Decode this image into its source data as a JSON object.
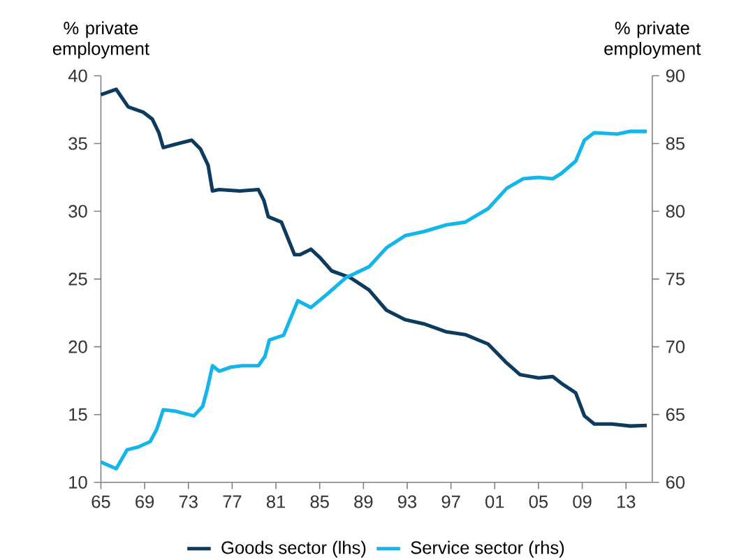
{
  "chart_data": {
    "type": "line",
    "ylabel": "% private employment",
    "y2label": "% private employment",
    "xlim": [
      1965,
      2015.4
    ],
    "ylim": [
      10,
      40
    ],
    "y2lim": [
      60,
      90
    ],
    "xticks": [
      {
        "value": 1965,
        "label": "65"
      },
      {
        "value": 1969,
        "label": "69"
      },
      {
        "value": 1973,
        "label": "73"
      },
      {
        "value": 1977,
        "label": "77"
      },
      {
        "value": 1981,
        "label": "81"
      },
      {
        "value": 1985,
        "label": "85"
      },
      {
        "value": 1989,
        "label": "89"
      },
      {
        "value": 1993,
        "label": "93"
      },
      {
        "value": 1997,
        "label": "97"
      },
      {
        "value": 2001,
        "label": "01"
      },
      {
        "value": 2005,
        "label": "05"
      },
      {
        "value": 2009,
        "label": "09"
      },
      {
        "value": 2013,
        "label": "13"
      }
    ],
    "yticks": [
      10,
      15,
      20,
      25,
      30,
      35,
      40
    ],
    "y2ticks": [
      60,
      65,
      70,
      75,
      80,
      85,
      90
    ],
    "grid": false,
    "legend": "bottom",
    "marker": "none",
    "line_style": "solid",
    "series": [
      {
        "name": "Goods sector (lhs)",
        "color": "#0d3b5e",
        "x": [
          1965.0,
          1966.4,
          1967.5,
          1968.9,
          1969.7,
          1970.3,
          1970.7,
          1971.6,
          1973.3,
          1974.1,
          1974.8,
          1975.2,
          1975.8,
          1977.7,
          1979.4,
          1979.9,
          1980.3,
          1981.5,
          1982.7,
          1983.2,
          1984.2,
          1985.0,
          1986.1,
          1987.8,
          1989.5,
          1991.1,
          1992.8,
          1994.5,
          1996.6,
          1998.3,
          2000.4,
          2002.1,
          2003.3,
          2005.0,
          2006.3,
          2007.1,
          2008.4,
          2009.2,
          2010.1,
          2011.7,
          2013.4,
          2014.9
        ],
        "values": [
          38.6,
          39.0,
          37.7,
          37.3,
          36.8,
          35.8,
          34.7,
          34.9,
          35.25,
          34.6,
          33.4,
          31.5,
          31.6,
          31.5,
          31.6,
          30.8,
          29.6,
          29.2,
          26.8,
          26.8,
          27.2,
          26.6,
          25.6,
          25.1,
          24.2,
          22.7,
          22.0,
          21.7,
          21.1,
          20.9,
          20.2,
          18.8,
          17.95,
          17.7,
          17.8,
          17.3,
          16.6,
          14.9,
          14.3,
          14.3,
          14.15,
          14.2
        ]
      },
      {
        "name": "Service sector (rhs)",
        "color": "#13b5ea",
        "axis": "y2",
        "x": [
          1965.0,
          1966.4,
          1967.4,
          1968.4,
          1969.5,
          1970.1,
          1970.7,
          1971.8,
          1973.5,
          1974.3,
          1974.7,
          1975.2,
          1975.8,
          1976.9,
          1977.9,
          1979.4,
          1980.0,
          1980.4,
          1981.7,
          1983.0,
          1984.2,
          1985.7,
          1987.4,
          1989.5,
          1991.1,
          1992.8,
          1994.5,
          1996.6,
          1998.3,
          2000.4,
          2002.1,
          2003.6,
          2005.0,
          2006.3,
          2007.1,
          2008.4,
          2009.2,
          2010.1,
          2012.2,
          2013.4,
          2014.9
        ],
        "values": [
          61.5,
          61.0,
          62.4,
          62.6,
          63.0,
          63.9,
          65.35,
          65.25,
          64.9,
          65.6,
          66.8,
          68.6,
          68.2,
          68.5,
          68.6,
          68.6,
          69.3,
          70.5,
          70.85,
          73.4,
          72.9,
          73.9,
          75.1,
          75.9,
          77.3,
          78.2,
          78.5,
          79.0,
          79.2,
          80.2,
          81.7,
          82.4,
          82.5,
          82.4,
          82.8,
          83.7,
          85.25,
          85.8,
          85.7,
          85.9,
          85.9
        ]
      }
    ]
  }
}
